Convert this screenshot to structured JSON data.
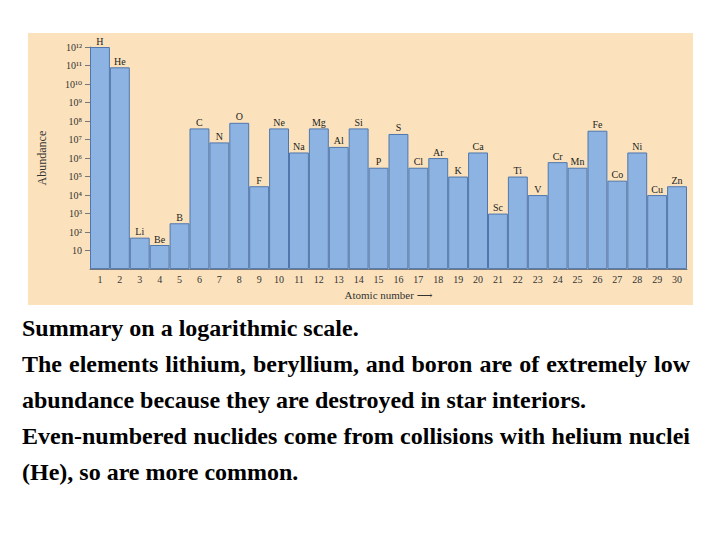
{
  "chart_data": {
    "type": "bar",
    "ylabel": "Abundance",
    "xlabel": "Atomic number ⟶",
    "categories": [
      1,
      2,
      3,
      4,
      5,
      6,
      7,
      8,
      9,
      10,
      11,
      12,
      13,
      14,
      15,
      16,
      17,
      18,
      19,
      20,
      21,
      22,
      23,
      24,
      25,
      26,
      27,
      28,
      29,
      30
    ],
    "bar_labels": [
      "H",
      "He",
      "Li",
      "Be",
      "B",
      "C",
      "N",
      "O",
      "F",
      "Ne",
      "Na",
      "Mg",
      "Al",
      "Si",
      "P",
      "S",
      "Cl",
      "Ar",
      "K",
      "Ca",
      "Sc",
      "Ti",
      "V",
      "Cr",
      "Mn",
      "Fe",
      "Co",
      "Ni",
      "Cu",
      "Zn"
    ],
    "values": [
      1000000000000,
      80000000000,
      50,
      20,
      300,
      40000000,
      7000000,
      80000000,
      30000,
      40000000,
      2000000,
      40000000,
      4000000,
      40000000,
      300000,
      20000000,
      300000,
      1000000,
      100000,
      2000000,
      1000,
      100000,
      10000,
      600000,
      300000,
      30000000,
      60000,
      2000000,
      10000,
      30000
    ],
    "color": "#8db3e2",
    "log": "y",
    "ylim": [
      1,
      1000000000000
    ],
    "yticks": [
      10,
      {
        "value": 100,
        "label": "10²"
      },
      {
        "value": 1000,
        "label": "10³"
      },
      {
        "value": 10000,
        "label": "10⁴"
      },
      {
        "value": 100000,
        "label": "10⁵"
      },
      {
        "value": 1000000,
        "label": "10⁶"
      },
      {
        "value": 10000000,
        "label": "10⁷"
      },
      {
        "value": 100000000,
        "label": "10⁸"
      },
      {
        "value": 1000000000,
        "label": "10⁹"
      },
      {
        "value": 10000000000,
        "label": "10¹⁰"
      },
      {
        "value": 100000000000,
        "label": "10¹¹"
      },
      {
        "value": 1000000000000,
        "label": "10¹²"
      }
    ],
    "grid": false,
    "annotations": [
      "Summary on a logarithmic scale.",
      "The elements lithium, beryllium, and boron are of extremely low abundance because they are destroyed in star interiors.",
      "Even-numbered nuclides come from collisions with helium nuclei (He), so are more common."
    ]
  }
}
